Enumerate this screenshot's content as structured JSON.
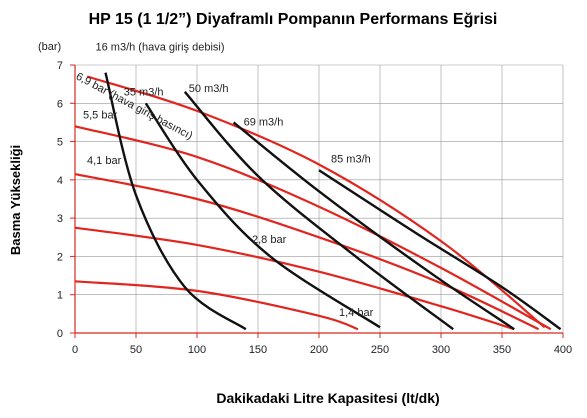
{
  "chart_data": {
    "type": "line",
    "title": "HP 15 (1 1/2”) Diyaframlı Pompanın Performans Eğrisi",
    "xlabel": "Dakikadaki Litre Kapasitesi (lt/dk)",
    "ylabel": "Basma Yüksekliği",
    "y_unit_label": "(bar)",
    "xlim": [
      0,
      400
    ],
    "ylim": [
      0,
      7
    ],
    "xticks": [
      "0",
      "50",
      "100",
      "150",
      "200",
      "250",
      "300",
      "350",
      "400"
    ],
    "yticks": [
      "0",
      "1",
      "2",
      "3",
      "4",
      "5",
      "6",
      "7"
    ],
    "grid": true,
    "colors": {
      "title": "#e8541e",
      "axis": "#d9281e",
      "air_pressure": "#e0261f",
      "air_flow": "#111111"
    },
    "air_pressure_series": [
      {
        "name": "6,9 bar",
        "label_text": "6,9 bar (hava giriş basıncı)",
        "x": [
          10,
          100,
          200,
          300,
          385
        ],
        "y": [
          6.7,
          5.8,
          4.4,
          2.4,
          0.15
        ]
      },
      {
        "name": "5,5 bar",
        "label_text": "5,5 bar",
        "x": [
          0,
          100,
          200,
          300,
          390
        ],
        "y": [
          5.4,
          4.6,
          3.3,
          1.7,
          0.1
        ]
      },
      {
        "name": "4,1 bar",
        "label_text": "4,1 bar",
        "x": [
          0,
          100,
          200,
          300,
          380
        ],
        "y": [
          4.15,
          3.5,
          2.5,
          1.3,
          0.1
        ]
      },
      {
        "name": "2,8 bar",
        "label_text": "2,8 bar",
        "x": [
          0,
          100,
          200,
          300,
          360
        ],
        "y": [
          2.75,
          2.3,
          1.6,
          0.7,
          0.1
        ]
      },
      {
        "name": "1,4 bar",
        "label_text": "1,4 bar",
        "x": [
          0,
          100,
          200,
          232
        ],
        "y": [
          1.35,
          1.1,
          0.45,
          0.1
        ]
      }
    ],
    "air_flow_series": [
      {
        "name": "16 m3/h",
        "label_text": "16 m3/h (hava giriş debisi)",
        "x": [
          25,
          50,
          90,
          140
        ],
        "y": [
          6.8,
          3.6,
          1.2,
          0.1
        ]
      },
      {
        "name": "35 m3/h",
        "label_text": "35 m3/h",
        "x": [
          58,
          100,
          160,
          250
        ],
        "y": [
          6.0,
          4.0,
          2.0,
          0.15
        ]
      },
      {
        "name": "50 m3/h",
        "label_text": "50 m3/h",
        "x": [
          90,
          150,
          230,
          310
        ],
        "y": [
          6.3,
          4.1,
          2.0,
          0.1
        ]
      },
      {
        "name": "69 m3/h",
        "label_text": "69 m3/h",
        "x": [
          130,
          200,
          290,
          360
        ],
        "y": [
          5.5,
          3.7,
          1.6,
          0.1
        ]
      },
      {
        "name": "85 m3/h",
        "label_text": "85 m3/h",
        "x": [
          200,
          280,
          350,
          398
        ],
        "y": [
          4.25,
          2.6,
          1.2,
          0.1
        ]
      }
    ]
  }
}
